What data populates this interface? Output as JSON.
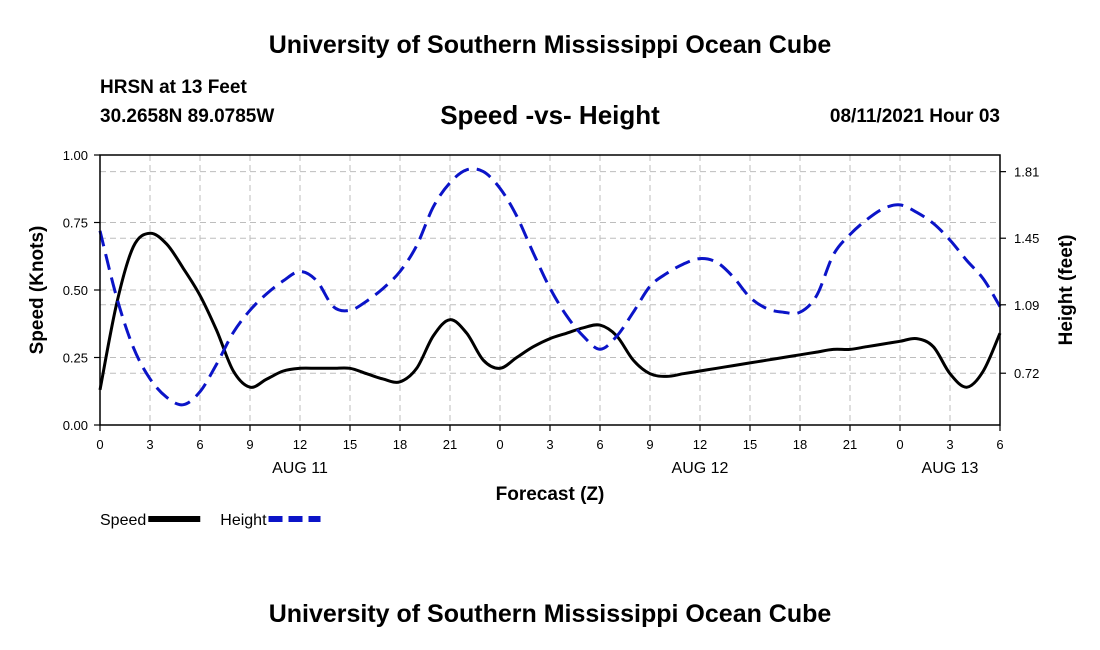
{
  "header": {
    "title": "University of Southern Mississippi Ocean Cube",
    "station": "HRSN at 13 Feet",
    "coordinates": "30.2658N  89.0785W",
    "subtitle": "Speed -vs- Height",
    "run_time": "08/11/2021 Hour 03"
  },
  "footer": {
    "title": "University of Southern Mississippi Ocean Cube"
  },
  "chart_data": {
    "type": "line",
    "title": "Speed -vs- Height",
    "xlabel": "Forecast (Z)",
    "x_hours": [
      0,
      3,
      6,
      9,
      12,
      15,
      18,
      21,
      24,
      27,
      30,
      33,
      36,
      39,
      42,
      45,
      48,
      51,
      54
    ],
    "x_tick_labels": [
      "0",
      "3",
      "6",
      "9",
      "12",
      "15",
      "18",
      "21",
      "0",
      "3",
      "6",
      "9",
      "12",
      "15",
      "18",
      "21",
      "0",
      "3",
      "6"
    ],
    "xlim": [
      0,
      54
    ],
    "day_labels": [
      {
        "hour": 12,
        "label": "AUG 11"
      },
      {
        "hour": 36,
        "label": "AUG 12"
      },
      {
        "hour": 51,
        "label": "AUG 13"
      }
    ],
    "left_axis": {
      "label": "Speed (Knots)",
      "ylim": [
        0,
        1
      ],
      "ticks": [
        "0.00",
        "0.25",
        "0.50",
        "0.75",
        "1.00"
      ],
      "tick_values": [
        0,
        0.25,
        0.5,
        0.75,
        1.0
      ]
    },
    "right_axis": {
      "label": "Height (feet)",
      "ylim": [
        0.44,
        1.9
      ],
      "ticks": [
        "0.72",
        "1.09",
        "1.45",
        "1.81"
      ],
      "tick_values": [
        0.72,
        1.09,
        1.45,
        1.81
      ]
    },
    "grid": true,
    "series": [
      {
        "name": "Speed",
        "axis": "left",
        "color": "#000000",
        "dash": "solid",
        "x": [
          0,
          1,
          2,
          3,
          4,
          5,
          6,
          7,
          8,
          9,
          10,
          11,
          12,
          13,
          14,
          15,
          16,
          17,
          18,
          19,
          20,
          21,
          22,
          23,
          24,
          25,
          26,
          27,
          28,
          29,
          30,
          31,
          32,
          33,
          34,
          35,
          36,
          37,
          38,
          39,
          40,
          41,
          42,
          43,
          44,
          45,
          46,
          47,
          48,
          49,
          50,
          51,
          52,
          53,
          54
        ],
        "values": [
          0.13,
          0.45,
          0.66,
          0.71,
          0.67,
          0.58,
          0.48,
          0.35,
          0.2,
          0.14,
          0.17,
          0.2,
          0.21,
          0.21,
          0.21,
          0.21,
          0.19,
          0.17,
          0.16,
          0.21,
          0.33,
          0.39,
          0.34,
          0.24,
          0.21,
          0.25,
          0.29,
          0.32,
          0.34,
          0.36,
          0.37,
          0.33,
          0.24,
          0.19,
          0.18,
          0.19,
          0.2,
          0.21,
          0.22,
          0.23,
          0.24,
          0.25,
          0.26,
          0.27,
          0.28,
          0.28,
          0.29,
          0.3,
          0.31,
          0.32,
          0.29,
          0.19,
          0.14,
          0.2,
          0.34
        ]
      },
      {
        "name": "Height",
        "axis": "right",
        "color": "#0b14c8",
        "dash": "dashed",
        "x": [
          0,
          1,
          2,
          3,
          4,
          5,
          6,
          7,
          8,
          9,
          10,
          11,
          12,
          13,
          14,
          15,
          16,
          17,
          18,
          19,
          20,
          21,
          22,
          23,
          24,
          25,
          26,
          27,
          28,
          29,
          30,
          31,
          32,
          33,
          34,
          35,
          36,
          37,
          38,
          39,
          40,
          41,
          42,
          43,
          44,
          45,
          46,
          47,
          48,
          49,
          50,
          51,
          52,
          53,
          54
        ],
        "values": [
          1.49,
          1.13,
          0.86,
          0.69,
          0.59,
          0.55,
          0.62,
          0.77,
          0.94,
          1.06,
          1.15,
          1.22,
          1.27,
          1.22,
          1.08,
          1.06,
          1.11,
          1.18,
          1.27,
          1.41,
          1.62,
          1.75,
          1.82,
          1.81,
          1.72,
          1.57,
          1.37,
          1.18,
          1.03,
          0.92,
          0.85,
          0.92,
          1.05,
          1.19,
          1.26,
          1.31,
          1.34,
          1.32,
          1.24,
          1.13,
          1.07,
          1.05,
          1.05,
          1.14,
          1.36,
          1.47,
          1.55,
          1.61,
          1.63,
          1.59,
          1.53,
          1.44,
          1.33,
          1.23,
          1.08
        ]
      }
    ],
    "legend": [
      {
        "label": "Speed",
        "color": "#000000",
        "dash": "solid"
      },
      {
        "label": "Height",
        "color": "#0b14c8",
        "dash": "dashed"
      }
    ],
    "legend_position": "bottom-left"
  }
}
